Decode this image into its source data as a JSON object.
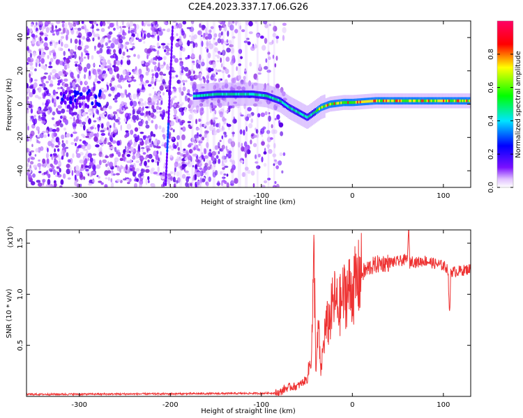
{
  "page_title": "C2E4.2023.337.17.06.G26",
  "chart_data": [
    {
      "type": "heatmap",
      "title": "C2E4.2023.337.17.06.G26",
      "xlabel": "Height of straight line (km)",
      "ylabel": "Frequency (Hz)",
      "xlim": [
        -358,
        130
      ],
      "ylim": [
        -50,
        50
      ],
      "xticks": [
        -300,
        -200,
        -100,
        0,
        100
      ],
      "yticks": [
        -40,
        -20,
        0,
        20,
        40
      ],
      "colorbar": {
        "label": "Normalized spectral amplitude",
        "range": [
          0,
          1
        ],
        "ticks": [
          0.0,
          0.2,
          0.4,
          0.6,
          0.8
        ],
        "colormap": [
          "#ffffff",
          "#6a0dff",
          "#0000ff",
          "#00e5ff",
          "#00ff00",
          "#ffff00",
          "#ff0000",
          "#ff0066"
        ]
      },
      "signal_track": {
        "x": [
          -300,
          -170,
          -150,
          -130,
          -110,
          -95,
          -80,
          -70,
          -60,
          -50,
          -40,
          -35,
          -25,
          -10,
          0,
          25,
          50,
          75,
          100,
          130
        ],
        "y": [
          2,
          5,
          6,
          6,
          6,
          5,
          2,
          -2,
          -5,
          -8,
          -4,
          -2,
          0,
          1,
          1,
          2,
          2,
          2,
          2,
          2
        ]
      },
      "noise_region_xmax": -80
    },
    {
      "type": "line",
      "xlabel": "Height of straight line (km)",
      "ylabel": "SNR (10 * v/v)",
      "ylabel_multiplier": "(x10",
      "ylabel_exponent": "4",
      "ylabel_close": ")",
      "xlim": [
        -358,
        130
      ],
      "ylim": [
        0,
        16300
      ],
      "xticks": [
        -300,
        -200,
        -100,
        0,
        100
      ],
      "yticks": [
        0.5,
        1.0,
        1.5
      ],
      "ytick_labels": [
        "0.5",
        "1.0",
        "1.5"
      ],
      "series": [
        {
          "color": "#ee3333",
          "x": [
            -358,
            -200,
            -100,
            -80,
            -75,
            -70,
            -60,
            -50,
            -45,
            -42,
            -40,
            -37,
            -35,
            -30,
            -25,
            -20,
            -15,
            -10,
            -5,
            0,
            5,
            10,
            20,
            30,
            40,
            50,
            55,
            60,
            62,
            63,
            65,
            70,
            80,
            90,
            100,
            105,
            107,
            108,
            110,
            120,
            130
          ],
          "y": [
            200,
            250,
            300,
            350,
            700,
            900,
            1000,
            1700,
            4000,
            13500,
            2500,
            7000,
            2200,
            6500,
            7500,
            9500,
            8500,
            9800,
            10400,
            10500,
            11200,
            12000,
            12700,
            13000,
            13100,
            13200,
            13300,
            13400,
            16200,
            13000,
            13300,
            13100,
            13300,
            13000,
            12800,
            12500,
            7500,
            12300,
            12200,
            12300,
            12500
          ]
        }
      ]
    }
  ]
}
